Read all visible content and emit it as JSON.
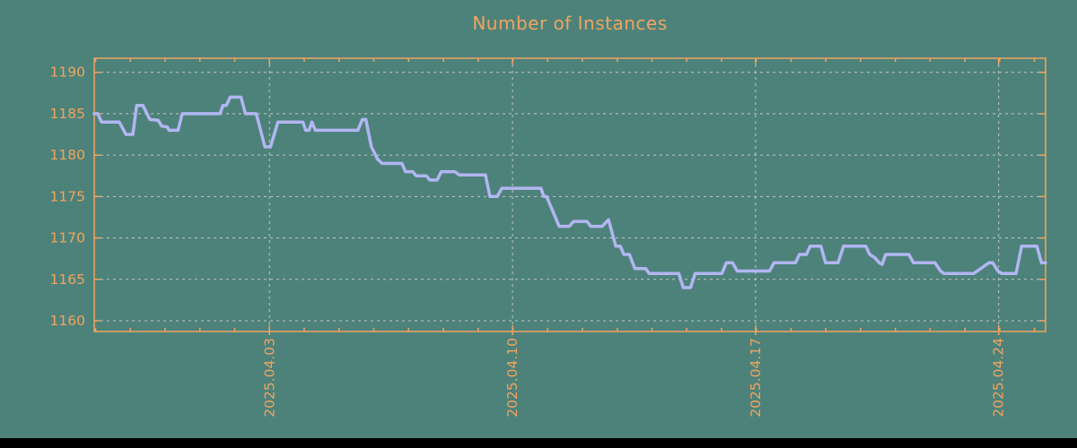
{
  "chart_data": {
    "type": "line",
    "title": "Number of Instances",
    "xlabel": "",
    "ylabel": "",
    "grid": true,
    "legend_position": "none",
    "xlim": [
      0,
      27.36
    ],
    "ylim": [
      1158.7,
      1191.7
    ],
    "y_ticks": [
      1160,
      1165,
      1170,
      1175,
      1180,
      1185,
      1190
    ],
    "x_ticks": [
      {
        "x": 5.04,
        "label": "2025.04.03"
      },
      {
        "x": 12.03,
        "label": "2025.04.10"
      },
      {
        "x": 19.02,
        "label": "2025.04.17"
      },
      {
        "x": 26.01,
        "label": "2025.04.24"
      }
    ],
    "x_minor_step": 1,
    "series": [
      {
        "name": "instances",
        "color": "#b2b6f2",
        "points": [
          [
            0.0,
            1185
          ],
          [
            0.1,
            1185
          ],
          [
            0.21,
            1184
          ],
          [
            0.72,
            1184
          ],
          [
            0.91,
            1182.5
          ],
          [
            1.11,
            1182.5
          ],
          [
            1.22,
            1186
          ],
          [
            1.4,
            1186
          ],
          [
            1.6,
            1184.3
          ],
          [
            1.84,
            1184.2
          ],
          [
            1.94,
            1183.5
          ],
          [
            2.1,
            1183.4
          ],
          [
            2.15,
            1183
          ],
          [
            2.41,
            1183
          ],
          [
            2.53,
            1185
          ],
          [
            3.62,
            1185
          ],
          [
            3.7,
            1186
          ],
          [
            3.8,
            1186
          ],
          [
            3.91,
            1187
          ],
          [
            4.22,
            1187
          ],
          [
            4.35,
            1185
          ],
          [
            4.66,
            1185
          ],
          [
            4.91,
            1181
          ],
          [
            5.07,
            1181
          ],
          [
            5.28,
            1184
          ],
          [
            6.0,
            1184
          ],
          [
            6.08,
            1183
          ],
          [
            6.18,
            1183
          ],
          [
            6.26,
            1184
          ],
          [
            6.36,
            1183
          ],
          [
            7.58,
            1183
          ],
          [
            7.71,
            1184.3
          ],
          [
            7.81,
            1184.3
          ],
          [
            7.97,
            1181
          ],
          [
            8.15,
            1179.5
          ],
          [
            8.28,
            1179
          ],
          [
            8.85,
            1179
          ],
          [
            8.95,
            1178
          ],
          [
            9.16,
            1178
          ],
          [
            9.26,
            1177.5
          ],
          [
            9.55,
            1177.5
          ],
          [
            9.65,
            1177
          ],
          [
            9.86,
            1177
          ],
          [
            9.98,
            1178
          ],
          [
            10.37,
            1178
          ],
          [
            10.5,
            1177.6
          ],
          [
            11.25,
            1177.6
          ],
          [
            11.38,
            1175
          ],
          [
            11.59,
            1175
          ],
          [
            11.72,
            1176
          ],
          [
            12.85,
            1176
          ],
          [
            12.93,
            1175
          ],
          [
            13.01,
            1175
          ],
          [
            13.37,
            1171.4
          ],
          [
            13.66,
            1171.4
          ],
          [
            13.79,
            1172
          ],
          [
            14.17,
            1172
          ],
          [
            14.28,
            1171.4
          ],
          [
            14.61,
            1171.4
          ],
          [
            14.79,
            1172.2
          ],
          [
            15.0,
            1169
          ],
          [
            15.13,
            1169
          ],
          [
            15.23,
            1168
          ],
          [
            15.39,
            1168
          ],
          [
            15.55,
            1166.3
          ],
          [
            15.86,
            1166.3
          ],
          [
            15.96,
            1165.7
          ],
          [
            16.81,
            1165.7
          ],
          [
            16.94,
            1164
          ],
          [
            17.15,
            1164
          ],
          [
            17.28,
            1165.7
          ],
          [
            18.05,
            1165.7
          ],
          [
            18.18,
            1167
          ],
          [
            18.36,
            1167
          ],
          [
            18.49,
            1166
          ],
          [
            19.42,
            1166
          ],
          [
            19.55,
            1167
          ],
          [
            20.17,
            1167
          ],
          [
            20.28,
            1168
          ],
          [
            20.48,
            1168
          ],
          [
            20.59,
            1169
          ],
          [
            20.9,
            1169
          ],
          [
            21.03,
            1167
          ],
          [
            21.39,
            1167
          ],
          [
            21.55,
            1169
          ],
          [
            22.19,
            1169
          ],
          [
            22.3,
            1168
          ],
          [
            22.45,
            1167.6
          ],
          [
            22.58,
            1167
          ],
          [
            22.66,
            1166.8
          ],
          [
            22.76,
            1168
          ],
          [
            23.43,
            1168
          ],
          [
            23.56,
            1167
          ],
          [
            24.18,
            1167
          ],
          [
            24.34,
            1166
          ],
          [
            24.44,
            1165.7
          ],
          [
            25.29,
            1165.7
          ],
          [
            25.73,
            1167
          ],
          [
            25.84,
            1167
          ],
          [
            25.99,
            1166
          ],
          [
            26.1,
            1165.7
          ],
          [
            26.51,
            1165.7
          ],
          [
            26.67,
            1169
          ],
          [
            27.11,
            1169
          ],
          [
            27.24,
            1167
          ],
          [
            27.36,
            1167
          ]
        ]
      }
    ]
  },
  "styles": {
    "background": "#4d827a",
    "accent_orange": "#f0a460",
    "grid_color": "#c3c8c3",
    "line_color": "#b2b6f2",
    "footer_color": "#000000"
  }
}
